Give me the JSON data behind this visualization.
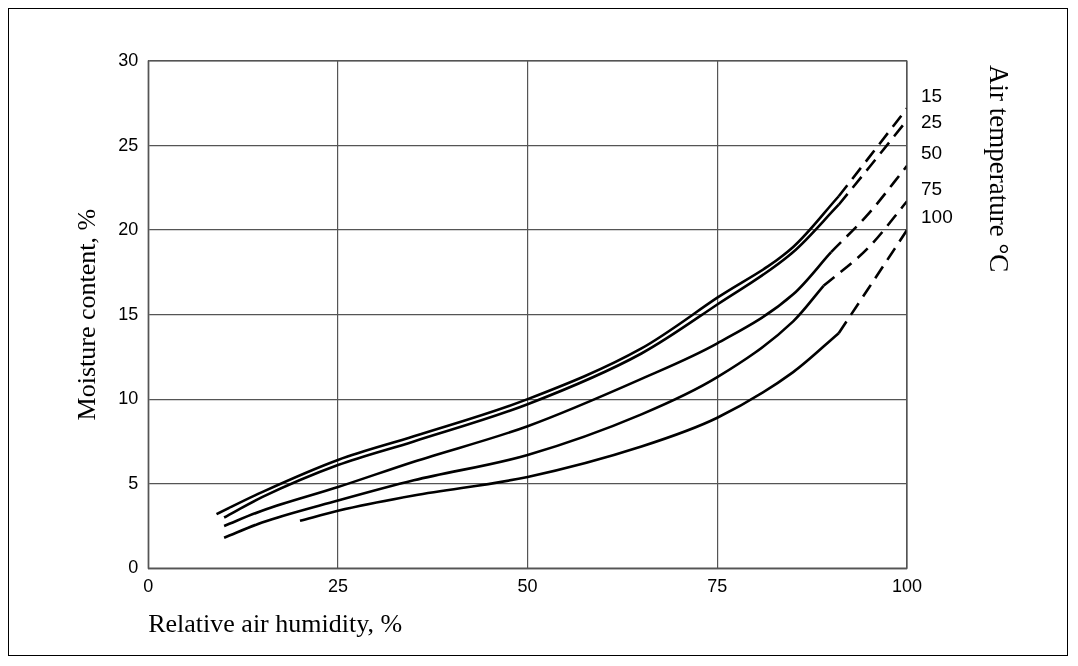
{
  "chart_data": {
    "type": "line",
    "xlabel": "Relative air humidity, %",
    "ylabel": "Moisture content, %",
    "legend_title": "Air temperature °C",
    "xlim": [
      0,
      100
    ],
    "xticks": [
      0,
      25,
      50,
      75,
      100
    ],
    "ylim": [
      0,
      30
    ],
    "yticks": [
      0,
      5,
      10,
      15,
      20,
      25,
      30
    ],
    "grid": true,
    "legend": false,
    "marker": "none",
    "series": [
      {
        "color": "#000000",
        "line_style": "solid",
        "x": [
          9,
          15,
          25,
          35,
          50,
          65,
          75,
          85,
          91
        ],
        "values": [
          3.2,
          4.5,
          6.4,
          7.8,
          10.0,
          13.0,
          16.0,
          19.0,
          22.0
        ]
      },
      {
        "color": "#000000",
        "line_style": "solid",
        "x": [
          10,
          15,
          25,
          35,
          50,
          65,
          75,
          85,
          91
        ],
        "values": [
          3.0,
          4.2,
          6.1,
          7.5,
          9.7,
          12.7,
          15.6,
          18.7,
          21.5
        ]
      },
      {
        "color": "#000000",
        "line_style": "solid",
        "x": [
          10,
          15,
          25,
          35,
          50,
          65,
          75,
          85,
          90
        ],
        "values": [
          2.5,
          3.4,
          4.8,
          6.3,
          8.4,
          11.2,
          13.3,
          16.2,
          18.7
        ]
      },
      {
        "color": "#000000",
        "line_style": "solid",
        "x": [
          10,
          15,
          25,
          35,
          50,
          65,
          75,
          85,
          89
        ],
        "values": [
          1.8,
          2.7,
          4.0,
          5.2,
          6.7,
          9.1,
          11.3,
          14.6,
          16.7
        ]
      },
      {
        "color": "#000000",
        "line_style": "solid",
        "x": [
          20,
          25,
          35,
          50,
          65,
          75,
          85,
          91
        ],
        "values": [
          2.8,
          3.4,
          4.3,
          5.4,
          7.2,
          8.9,
          11.6,
          13.9
        ]
      },
      {
        "name": "15",
        "color": "#000000",
        "line_style": "dashed",
        "x": [
          91,
          95,
          100
        ],
        "values": [
          22.0,
          24.3,
          27.2
        ]
      },
      {
        "name": "25",
        "color": "#000000",
        "line_style": "dashed",
        "x": [
          91,
          95,
          100
        ],
        "values": [
          21.5,
          23.7,
          26.5
        ]
      },
      {
        "name": "50",
        "color": "#000000",
        "line_style": "dashed",
        "x": [
          90,
          95,
          100
        ],
        "values": [
          18.7,
          21.0,
          23.8
        ]
      },
      {
        "name": "75",
        "color": "#000000",
        "line_style": "dashed",
        "x": [
          89,
          95,
          100
        ],
        "values": [
          16.7,
          19.0,
          21.7
        ]
      },
      {
        "name": "100",
        "color": "#000000",
        "line_style": "dashed",
        "x": [
          91,
          95,
          100
        ],
        "values": [
          13.9,
          16.6,
          20.0
        ]
      }
    ]
  }
}
